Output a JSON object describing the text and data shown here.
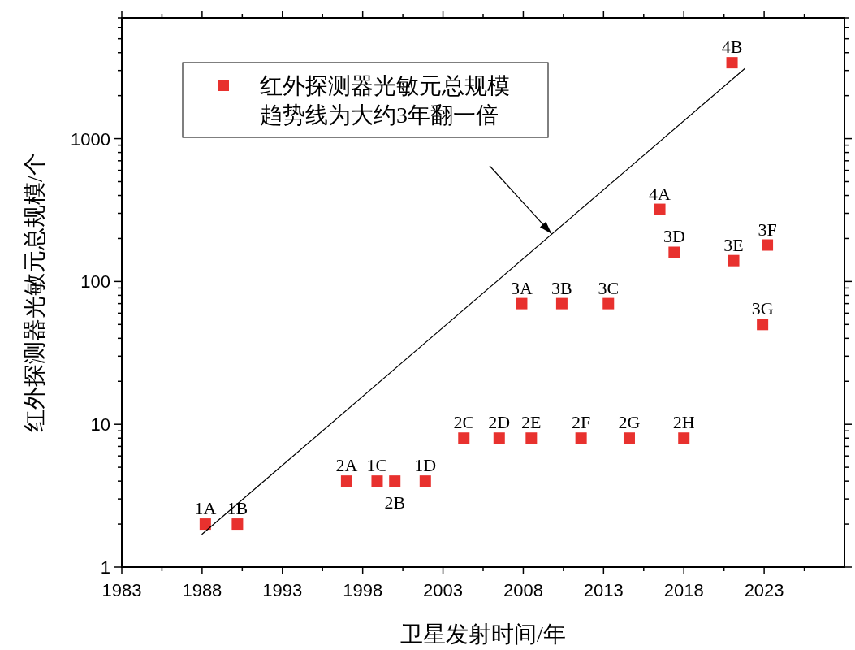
{
  "chart_data": {
    "type": "scatter",
    "xlabel": "卫星发射时间/年",
    "ylabel": "红外探测器光敏元总规模/个",
    "xlim": [
      1983,
      2028
    ],
    "ylim": [
      1,
      7000
    ],
    "log": "y",
    "grid": false,
    "legend": "top left",
    "xticks": [
      1983,
      {
        "value": 1985.5,
        "label": null
      },
      1988,
      {
        "value": 1990.5,
        "label": null
      },
      1993,
      {
        "value": 1995.5,
        "label": null
      },
      1998,
      {
        "value": 2000.5,
        "label": null
      },
      2003,
      {
        "value": 2005.5,
        "label": null
      },
      2008,
      {
        "value": 2010.5,
        "label": null
      },
      2013,
      {
        "value": 2015.5,
        "label": null
      },
      2018,
      {
        "value": 2020.5,
        "label": null
      },
      2023,
      {
        "value": 2025.5,
        "label": null
      }
    ],
    "yticks": [
      1,
      {
        "value": 2,
        "label": null
      },
      {
        "value": 3,
        "label": null
      },
      {
        "value": 4,
        "label": null
      },
      {
        "value": 5,
        "label": null
      },
      {
        "value": 6,
        "label": null
      },
      {
        "value": 7,
        "label": null
      },
      {
        "value": 8,
        "label": null
      },
      {
        "value": 9,
        "label": null
      },
      10,
      {
        "value": 20,
        "label": null
      },
      {
        "value": 30,
        "label": null
      },
      {
        "value": 40,
        "label": null
      },
      {
        "value": 50,
        "label": null
      },
      {
        "value": 60,
        "label": null
      },
      {
        "value": 70,
        "label": null
      },
      {
        "value": 80,
        "label": null
      },
      {
        "value": 90,
        "label": null
      },
      100,
      {
        "value": 200,
        "label": null
      },
      {
        "value": 300,
        "label": null
      },
      {
        "value": 400,
        "label": null
      },
      {
        "value": 500,
        "label": null
      },
      {
        "value": 600,
        "label": null
      },
      {
        "value": 700,
        "label": null
      },
      {
        "value": 800,
        "label": null
      },
      {
        "value": 900,
        "label": null
      },
      1000,
      {
        "value": 2000,
        "label": null
      },
      {
        "value": 3000,
        "label": null
      },
      {
        "value": 4000,
        "label": null
      },
      {
        "value": 5000,
        "label": null
      },
      {
        "value": 6000,
        "label": null
      },
      {
        "value": 7000,
        "label": null
      }
    ],
    "series": [
      {
        "name": "红外探测器光敏元总规模",
        "marker": "square",
        "color": "#e8312e",
        "x": [
          1988.2,
          1990.2,
          1997.0,
          1998.9,
          2000.0,
          2001.9,
          2004.3,
          2006.5,
          2008.5,
          2011.6,
          2014.6,
          2018.0,
          2007.9,
          2010.4,
          2013.3,
          2016.5,
          2017.4,
          2021.1,
          2023.2,
          2022.9,
          2021.0
        ],
        "values": [
          2,
          2,
          4,
          4,
          4,
          4,
          8,
          8,
          8,
          8,
          8,
          8,
          70,
          70,
          70,
          320,
          160,
          140,
          180,
          50,
          3400
        ]
      },
      {
        "name": "趋势线为大约3年翻一倍",
        "type": "line",
        "marker": "none",
        "color": "#000000",
        "x": [
          1988.0,
          2021.8
        ],
        "values": [
          1.7,
          3100
        ]
      }
    ],
    "annotations": [
      {
        "text": "1A",
        "x": 1988.2,
        "y": 2
      },
      {
        "text": "1B",
        "x": 1990.2,
        "y": 2
      },
      {
        "text": "2A",
        "x": 1997.0,
        "y": 4
      },
      {
        "text": "1C",
        "x": 1998.9,
        "y": 4
      },
      {
        "text": "2B",
        "x": 2000.0,
        "y": 4
      },
      {
        "text": "1D",
        "x": 2001.9,
        "y": 4
      },
      {
        "text": "2C",
        "x": 2004.3,
        "y": 8
      },
      {
        "text": "2D",
        "x": 2006.5,
        "y": 8
      },
      {
        "text": "2E",
        "x": 2008.5,
        "y": 8
      },
      {
        "text": "2F",
        "x": 2011.6,
        "y": 8
      },
      {
        "text": "2G",
        "x": 2014.6,
        "y": 8
      },
      {
        "text": "2H",
        "x": 2018.0,
        "y": 8
      },
      {
        "text": "3A",
        "x": 2007.9,
        "y": 70
      },
      {
        "text": "3B",
        "x": 2010.4,
        "y": 70
      },
      {
        "text": "3C",
        "x": 2013.3,
        "y": 70
      },
      {
        "text": "4A",
        "x": 2016.5,
        "y": 320
      },
      {
        "text": "3D",
        "x": 2017.4,
        "y": 160
      },
      {
        "text": "3E",
        "x": 2021.1,
        "y": 140
      },
      {
        "text": "3F",
        "x": 2023.2,
        "y": 180
      },
      {
        "text": "3G",
        "x": 2022.9,
        "y": 50
      },
      {
        "text": "4B",
        "x": 2021.0,
        "y": 3400
      }
    ]
  }
}
